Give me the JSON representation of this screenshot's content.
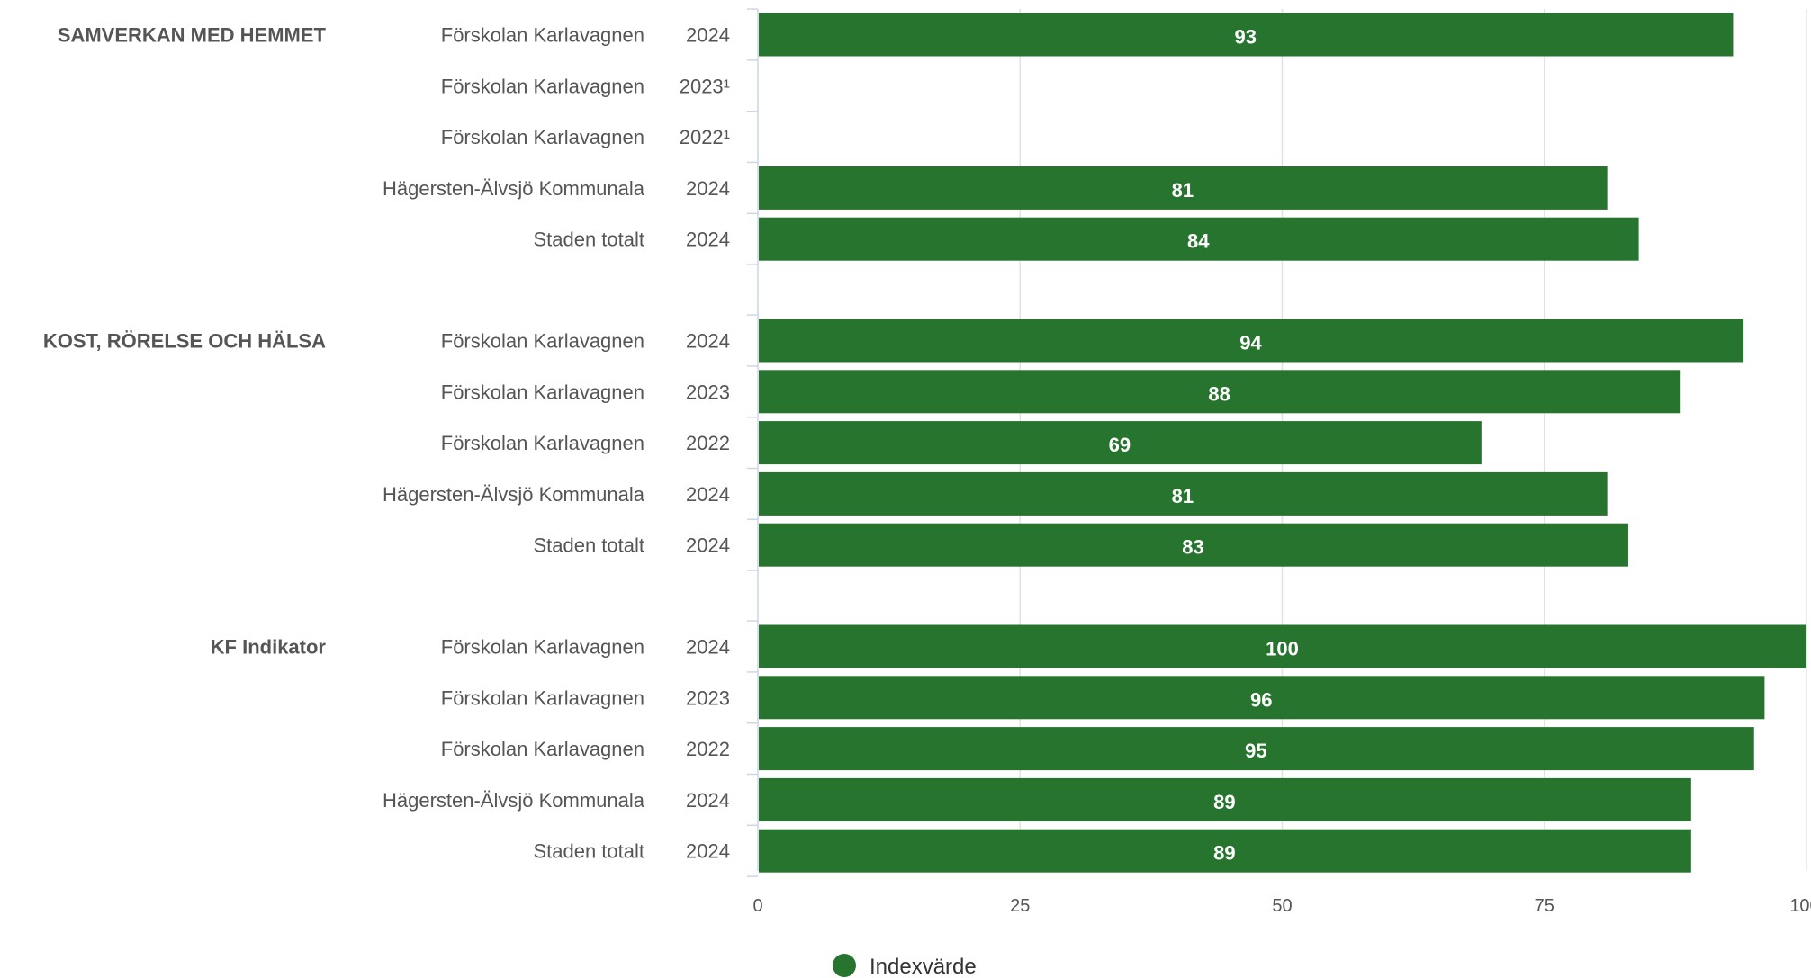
{
  "chart_data": {
    "type": "bar",
    "orientation": "horizontal",
    "xlim": [
      0,
      100
    ],
    "xticks": [
      0,
      25,
      50,
      75,
      100
    ],
    "grid": true,
    "legend_position": "bottom-center",
    "bar_color": "#26742e",
    "series": [
      {
        "name": "Indexvärde"
      }
    ],
    "groups": [
      {
        "name": "SAMVERKAN MED HEMMET",
        "rows": [
          {
            "unit": "Förskolan Karlavagnen",
            "year": "2024",
            "value": 93
          },
          {
            "unit": "Förskolan Karlavagnen",
            "year": "2023¹",
            "value": null
          },
          {
            "unit": "Förskolan Karlavagnen",
            "year": "2022¹",
            "value": null
          },
          {
            "unit": "Hägersten-Älvsjö Kommunala",
            "year": "2024",
            "value": 81
          },
          {
            "unit": "Staden totalt",
            "year": "2024",
            "value": 84
          }
        ]
      },
      {
        "name": "KOST, RÖRELSE OCH HÄLSA",
        "rows": [
          {
            "unit": "Förskolan Karlavagnen",
            "year": "2024",
            "value": 94
          },
          {
            "unit": "Förskolan Karlavagnen",
            "year": "2023",
            "value": 88
          },
          {
            "unit": "Förskolan Karlavagnen",
            "year": "2022",
            "value": 69
          },
          {
            "unit": "Hägersten-Älvsjö Kommunala",
            "year": "2024",
            "value": 81
          },
          {
            "unit": "Staden totalt",
            "year": "2024",
            "value": 83
          }
        ]
      },
      {
        "name": "KF Indikator",
        "rows": [
          {
            "unit": "Förskolan Karlavagnen",
            "year": "2024",
            "value": 100
          },
          {
            "unit": "Förskolan Karlavagnen",
            "year": "2023",
            "value": 96
          },
          {
            "unit": "Förskolan Karlavagnen",
            "year": "2022",
            "value": 95
          },
          {
            "unit": "Hägersten-Älvsjö Kommunala",
            "year": "2024",
            "value": 89
          },
          {
            "unit": "Staden totalt",
            "year": "2024",
            "value": 89
          }
        ]
      }
    ]
  }
}
